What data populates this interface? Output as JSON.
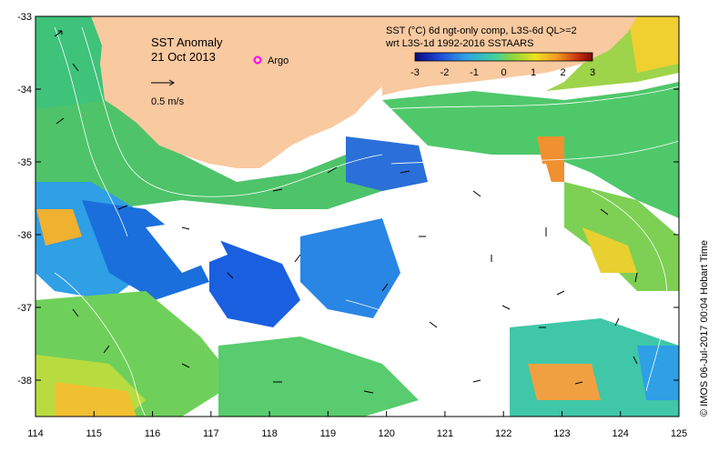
{
  "map": {
    "title": "SST Anomaly",
    "date": "21 Oct 2013",
    "argo_label": "Argo",
    "arrow_label": "0.5 m/s",
    "colorbar_title_line1": "SST (°C) 6d ngt-only comp, L3S-6d QL>=2",
    "colorbar_title_line2": "wrt L3S-1d 1992-2016 SSTAARS",
    "credit": "© IMOS 06-Jul-2017 00:04 Hobart Time",
    "colorbar": {
      "min": -3,
      "max": 3,
      "ticks": [
        "-3",
        "-2",
        "-1",
        "0",
        "1",
        "2",
        "3"
      ],
      "colors": [
        "#0a0a7a",
        "#1a3fd0",
        "#2f9fe6",
        "#3fd1a0",
        "#8fd63a",
        "#f0e020",
        "#f59a20",
        "#c83010",
        "#7a0a0a"
      ]
    },
    "x_axis": {
      "min": 114,
      "max": 125,
      "ticks": [
        "114",
        "115",
        "116",
        "117",
        "118",
        "119",
        "120",
        "121",
        "122",
        "123",
        "124",
        "125"
      ]
    },
    "y_axis": {
      "min": -38.5,
      "max": -33,
      "ticks": [
        "-33",
        "-34",
        "-35",
        "-36",
        "-37",
        "-38"
      ]
    },
    "colors": {
      "land": "#f9c9a0",
      "argo": "#ff00ff",
      "contour": "#ffffff"
    }
  }
}
